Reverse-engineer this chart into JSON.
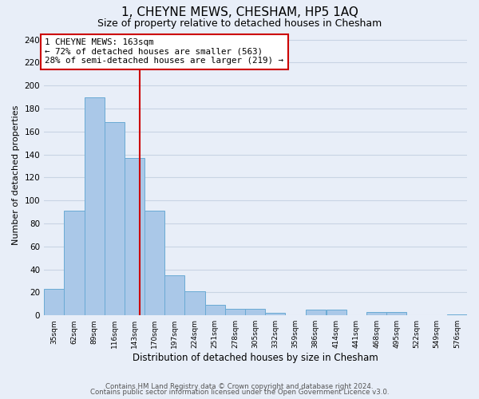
{
  "title": "1, CHEYNE MEWS, CHESHAM, HP5 1AQ",
  "subtitle": "Size of property relative to detached houses in Chesham",
  "xlabel": "Distribution of detached houses by size in Chesham",
  "ylabel": "Number of detached properties",
  "bin_labels": [
    "35sqm",
    "62sqm",
    "89sqm",
    "116sqm",
    "143sqm",
    "170sqm",
    "197sqm",
    "224sqm",
    "251sqm",
    "278sqm",
    "305sqm",
    "332sqm",
    "359sqm",
    "386sqm",
    "414sqm",
    "441sqm",
    "468sqm",
    "495sqm",
    "522sqm",
    "549sqm",
    "576sqm"
  ],
  "bin_edges": [
    35,
    62,
    89,
    116,
    143,
    170,
    197,
    224,
    251,
    278,
    305,
    332,
    359,
    386,
    414,
    441,
    468,
    495,
    522,
    549,
    576
  ],
  "bar_heights": [
    23,
    91,
    190,
    168,
    137,
    91,
    35,
    21,
    9,
    6,
    6,
    2,
    0,
    5,
    5,
    0,
    3,
    3,
    0,
    0,
    1
  ],
  "bar_color": "#aac8e8",
  "bar_edge_color": "#6aaad4",
  "red_line_x": 163,
  "annotation_title": "1 CHEYNE MEWS: 163sqm",
  "annotation_line1": "← 72% of detached houses are smaller (563)",
  "annotation_line2": "28% of semi-detached houses are larger (219) →",
  "annotation_box_color": "white",
  "annotation_box_edge": "#cc0000",
  "vline_color": "#cc0000",
  "ylim": [
    0,
    245
  ],
  "yticks": [
    0,
    20,
    40,
    60,
    80,
    100,
    120,
    140,
    160,
    180,
    200,
    220,
    240
  ],
  "grid_color": "#c8d4e4",
  "background_color": "#e8eef8",
  "footer_line1": "Contains HM Land Registry data © Crown copyright and database right 2024.",
  "footer_line2": "Contains public sector information licensed under the Open Government Licence v3.0."
}
